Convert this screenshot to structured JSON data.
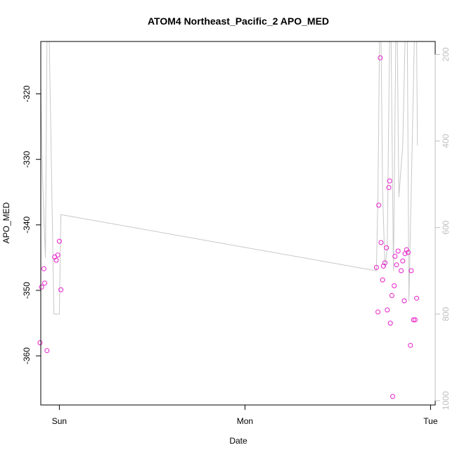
{
  "chart_data": {
    "type": "scatter",
    "title": "ATOM4 Northeast_Pacific_2 APO_MED",
    "xlabel": "Date",
    "ylabel": "APO_MED",
    "x_ticks": [
      {
        "label": "Sun",
        "value": 0.0
      },
      {
        "label": "Mon",
        "value": 24.0
      },
      {
        "label": "Tue",
        "value": 48.0
      }
    ],
    "xlim": [
      -2.4,
      48.6
    ],
    "ylim": [
      -367.5,
      -312.0
    ],
    "y_ticks": [
      -320,
      -330,
      -340,
      -350,
      -360
    ],
    "y2lim": [
      1010,
      170
    ],
    "y2_ticks": [
      200,
      400,
      600,
      800,
      1000
    ],
    "colors": {
      "points": "#e81ec8",
      "line": "#c8c8c8",
      "axis_right": "#bfbfbf"
    },
    "series": [
      {
        "type": "scatter",
        "axis": "left",
        "points": [
          [
            -2.5,
            -358.0
          ],
          [
            -2.3,
            -349.5
          ],
          [
            -2.0,
            -346.7
          ],
          [
            -1.9,
            -348.9
          ],
          [
            -1.6,
            -359.2
          ],
          [
            -0.6,
            -344.9
          ],
          [
            -0.4,
            -345.4
          ],
          [
            -0.2,
            -344.6
          ],
          [
            0.0,
            -342.5
          ],
          [
            0.2,
            -349.9
          ],
          [
            41.0,
            -346.5
          ],
          [
            41.2,
            -353.3
          ],
          [
            41.3,
            -337.0
          ],
          [
            41.5,
            -314.5
          ],
          [
            41.6,
            -342.7
          ],
          [
            41.8,
            -348.4
          ],
          [
            41.9,
            -346.3
          ],
          [
            42.1,
            -345.8
          ],
          [
            42.3,
            -343.5
          ],
          [
            42.4,
            -353.0
          ],
          [
            42.6,
            -334.3
          ],
          [
            42.7,
            -333.3
          ],
          [
            42.8,
            -355.0
          ],
          [
            43.0,
            -350.8
          ],
          [
            43.1,
            -366.2
          ],
          [
            43.3,
            -349.3
          ],
          [
            43.4,
            -344.8
          ],
          [
            43.6,
            -346.1
          ],
          [
            43.8,
            -344.0
          ],
          [
            44.2,
            -347.0
          ],
          [
            44.4,
            -345.5
          ],
          [
            44.6,
            -351.6
          ],
          [
            44.7,
            -344.4
          ],
          [
            44.9,
            -343.8
          ],
          [
            45.1,
            -344.2
          ],
          [
            45.4,
            -358.4
          ],
          [
            45.5,
            -347.0
          ],
          [
            45.8,
            -354.5
          ],
          [
            46.0,
            -354.5
          ],
          [
            46.2,
            -351.2
          ]
        ]
      },
      {
        "type": "line",
        "axis": "right",
        "points": [
          [
            -2.5,
            170
          ],
          [
            -2.2,
            470
          ],
          [
            -1.8,
            670
          ],
          [
            -1.6,
            170
          ],
          [
            -1.3,
            170
          ],
          [
            -0.7,
            800
          ],
          [
            0.0,
            800
          ],
          [
            0.2,
            570
          ],
          [
            41.0,
            700
          ],
          [
            41.2,
            520
          ],
          [
            41.4,
            170
          ],
          [
            41.6,
            170
          ],
          [
            41.8,
            520
          ],
          [
            42.1,
            690
          ],
          [
            42.4,
            650
          ],
          [
            42.7,
            170
          ],
          [
            42.9,
            170
          ],
          [
            43.2,
            700
          ],
          [
            43.5,
            170
          ],
          [
            43.7,
            170
          ],
          [
            43.9,
            530
          ],
          [
            44.4,
            410
          ],
          [
            44.7,
            170
          ],
          [
            45.0,
            170
          ],
          [
            45.2,
            770
          ],
          [
            45.4,
            600
          ],
          [
            45.9,
            170
          ],
          [
            46.2,
            170
          ],
          [
            46.3,
            410
          ]
        ]
      }
    ]
  }
}
